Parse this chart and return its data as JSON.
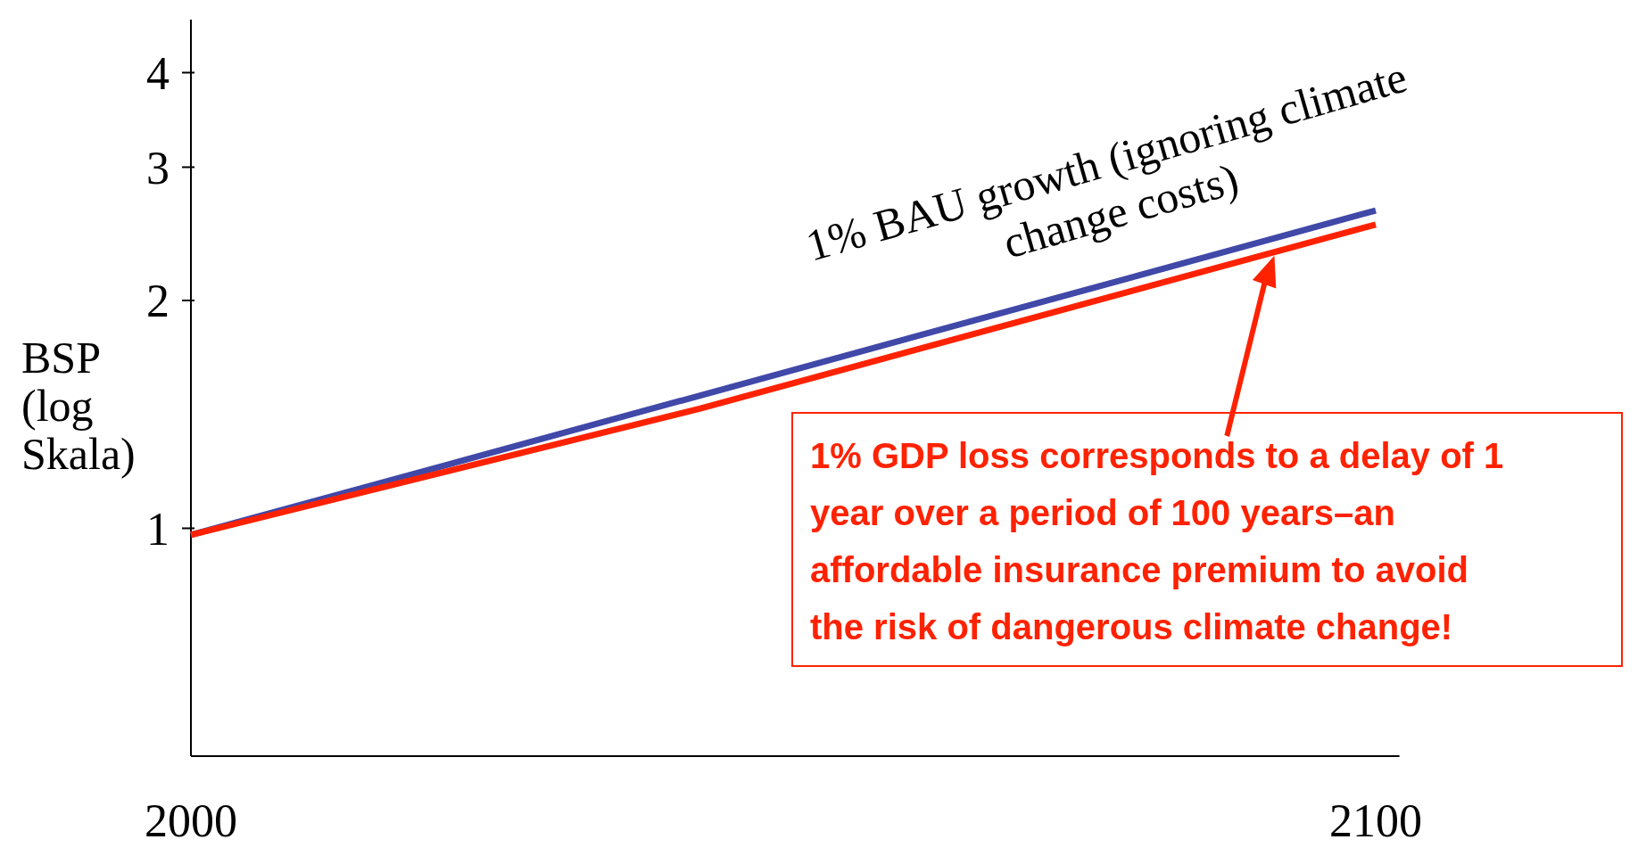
{
  "chart_data": {
    "type": "line",
    "ylabel": "BSP (log Skala)",
    "log": "y",
    "xlim": [
      2000,
      2102
    ],
    "xticks": [
      2000,
      2100
    ],
    "ylim": [
      0.5,
      4.7
    ],
    "yticks": [
      1,
      2,
      3,
      4
    ],
    "grid": false,
    "line_style": "solid",
    "marker": "none",
    "series": [
      {
        "name": "1% BAU growth (ignoring climate change costs)",
        "color": "#4048a8",
        "x": [
          2000,
          2100
        ],
        "values": [
          0.98,
          2.63
        ]
      },
      {
        "color": "#ff2200",
        "x": [
          2000,
          2043,
          2100
        ],
        "values": [
          0.98,
          1.44,
          2.52
        ]
      }
    ],
    "annotations": [
      "1% GDP loss corresponds to a delay of 1 year over a period of 100 years–an affordable insurance premium to avoid the risk of dangerous climate change!"
    ]
  }
}
